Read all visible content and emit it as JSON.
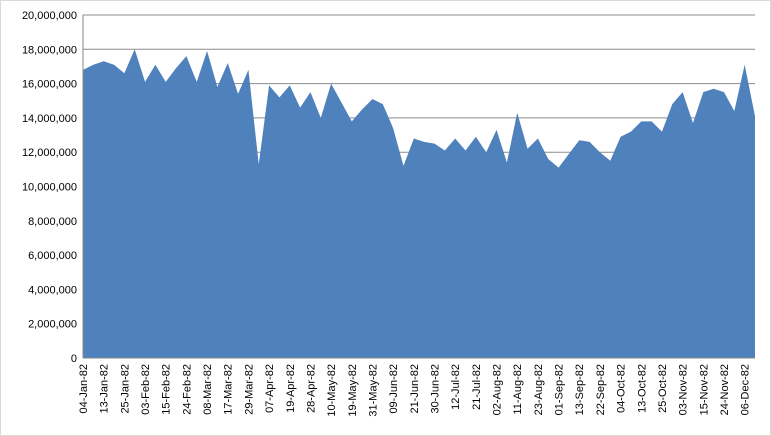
{
  "chart_data": {
    "type": "area",
    "categories": [
      "04-Jan-82",
      null,
      "13-Jan-82",
      null,
      "25-Jan-82",
      null,
      "03-Feb-82",
      null,
      "15-Feb-82",
      null,
      "24-Feb-82",
      null,
      "08-Mar-82",
      null,
      "17-Mar-82",
      null,
      "29-Mar-82",
      null,
      "07-Apr-82",
      null,
      "19-Apr-82",
      null,
      "28-Apr-82",
      null,
      "10-May-82",
      null,
      "19-May-82",
      null,
      "31-May-82",
      null,
      "09-Jun-82",
      null,
      "21-Jun-82",
      null,
      "30-Jun-82",
      null,
      "12-Jul-82",
      null,
      "21-Jul-82",
      null,
      "02-Aug-82",
      null,
      "11-Aug-82",
      null,
      "23-Aug-82",
      null,
      "01-Sep-82",
      null,
      "13-Sep-82",
      null,
      "22-Sep-82",
      null,
      "04-Oct-82",
      null,
      "13-Oct-82",
      null,
      "25-Oct-82",
      null,
      "03-Nov-82",
      null,
      "15-Nov-82",
      null,
      "24-Nov-82",
      null,
      "06-Dec-82",
      null
    ],
    "values": [
      16800000,
      17100000,
      17300000,
      17100000,
      16600000,
      18000000,
      16100000,
      17100000,
      16100000,
      16900000,
      17600000,
      16100000,
      17900000,
      15800000,
      17200000,
      15400000,
      16800000,
      11300000,
      15900000,
      15200000,
      15900000,
      14600000,
      15500000,
      14000000,
      16000000,
      14900000,
      13800000,
      14500000,
      15100000,
      14800000,
      13400000,
      11200000,
      12800000,
      12600000,
      12500000,
      12100000,
      12800000,
      12100000,
      12900000,
      12000000,
      13300000,
      11400000,
      14300000,
      12200000,
      12800000,
      11600000,
      11100000,
      11900000,
      12700000,
      12600000,
      12000000,
      11500000,
      12900000,
      13200000,
      13800000,
      13800000,
      13200000,
      14800000,
      15500000,
      13700000,
      15500000,
      15700000,
      15500000,
      14400000,
      17100000,
      14100000
    ],
    "color": "#4f81bd",
    "ylim": [
      0,
      20000000
    ],
    "yticks": [
      0,
      {
        "value": 2000000,
        "label": "2,000,000"
      },
      {
        "value": 4000000,
        "label": "4,000,000"
      },
      {
        "value": 6000000,
        "label": "6,000,000"
      },
      {
        "value": 8000000,
        "label": "8,000,000"
      },
      {
        "value": 10000000,
        "label": "10,000,000"
      },
      {
        "value": 12000000,
        "label": "12,000,000"
      },
      {
        "value": 14000000,
        "label": "14,000,000"
      },
      {
        "value": 16000000,
        "label": "16,000,000"
      },
      {
        "value": 18000000,
        "label": "18,000,000"
      },
      {
        "value": 20000000,
        "label": "20,000,000"
      }
    ],
    "grid": true
  }
}
